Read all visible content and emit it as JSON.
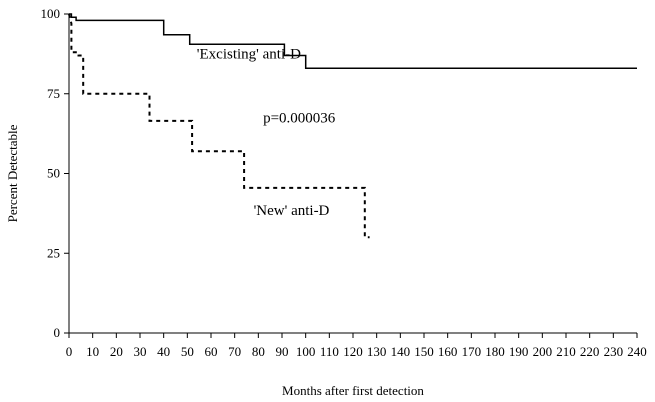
{
  "chart_data": {
    "type": "line",
    "xlabel": "Months after first detection",
    "ylabel": "Percent Detectable",
    "xlim": [
      0,
      240
    ],
    "ylim": [
      0,
      100
    ],
    "x_ticks": [
      "0",
      "10",
      "20",
      "30",
      "40",
      "50",
      "60",
      "70",
      "80",
      "90",
      "100",
      "110",
      "120",
      "130",
      "140",
      "150",
      "160",
      "170",
      "180",
      "190",
      "200",
      "210",
      "220",
      "230",
      "240"
    ],
    "y_ticks": [
      "0",
      "25",
      "50",
      "75",
      "100"
    ],
    "grid": false,
    "series": [
      {
        "name": "'Excisting' anti-D",
        "style": "solid",
        "color": "#000000",
        "x": [
          0,
          1,
          1,
          3,
          3,
          7,
          40,
          40,
          51,
          51,
          91,
          91,
          100,
          100,
          240
        ],
        "y": [
          100,
          100,
          99,
          99,
          98,
          98,
          98,
          93.5,
          93.5,
          90.5,
          90.5,
          87,
          87,
          83,
          83
        ]
      },
      {
        "name": "'New' anti-D",
        "style": "dashed",
        "color": "#000000",
        "x": [
          0,
          1,
          1,
          4,
          4,
          6,
          6,
          34,
          34,
          52,
          52,
          74,
          74,
          125,
          125,
          127
        ],
        "y": [
          100,
          97,
          88,
          88,
          87,
          87,
          75,
          75,
          66.5,
          66.5,
          57,
          57,
          45.5,
          45.5,
          30,
          30
        ]
      }
    ],
    "annotations": [
      {
        "text": "'Excisting' anti-D",
        "x": 54,
        "y": 86
      },
      {
        "text": "p=0.000036",
        "x": 82,
        "y": 66
      },
      {
        "text": "'New' anti-D",
        "x": 78,
        "y": 37
      }
    ]
  }
}
